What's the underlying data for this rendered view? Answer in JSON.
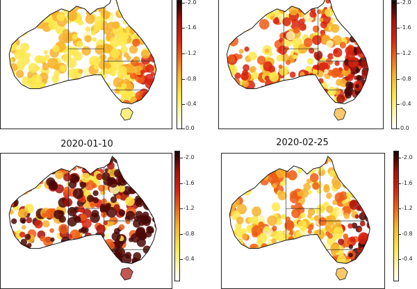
{
  "panels": [
    {
      "title": "",
      "colorbar_ticks": [
        "-2.0",
        "-1.6",
        "-1.2",
        "-0.8",
        "-0.4",
        "0.0"
      ]
    },
    {
      "title": "",
      "colorbar_ticks": [
        "-2.0",
        "-1.6",
        "-1.2",
        "-0.8",
        "-0.4",
        "0.0"
      ]
    },
    {
      "title": "2020-01-10",
      "colorbar_ticks": [
        "-2.0",
        "-1.6",
        "-1.2",
        "-0.8",
        "-0.4",
        "0.0"
      ]
    },
    {
      "title": "2020-02-25",
      "colorbar_ticks": [
        "-2.0",
        "-1.6",
        "-1.2",
        "-0.8",
        "-0.4",
        "0.0"
      ]
    }
  ],
  "colorbar_range": [
    0.0,
    -2.0
  ],
  "colors": {
    "low": "#ffffff",
    "mid_low": "#fde84b",
    "mid": "#ee5a14",
    "high": "#a8110a",
    "extreme": "#1a0202",
    "coast": "#111111"
  },
  "severity_levels": [
    0.25,
    0.45,
    0.85,
    0.35
  ]
}
